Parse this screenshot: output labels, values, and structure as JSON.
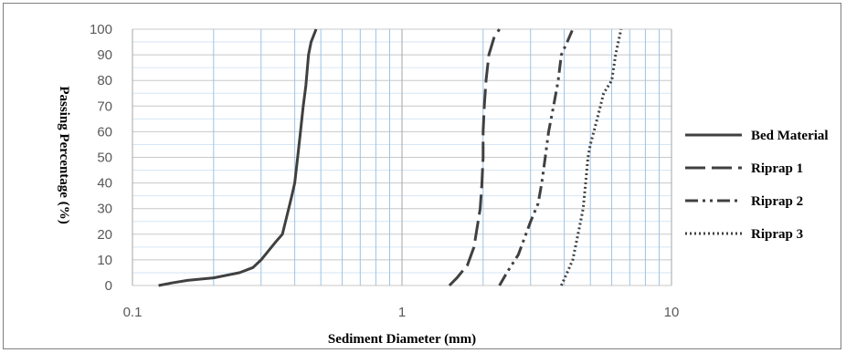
{
  "chart_data": {
    "type": "line",
    "xlabel": "Sediment Diameter (mm)",
    "ylabel": "Passing Percentage (%)",
    "xscale": "log",
    "xlim": [
      0.1,
      10
    ],
    "ylim": [
      0,
      100
    ],
    "x_ticks": [
      "0.1",
      "1",
      "10"
    ],
    "y_ticks": [
      "0",
      "10",
      "20",
      "30",
      "40",
      "50",
      "60",
      "70",
      "80",
      "90",
      "100"
    ],
    "grid": true,
    "legend_position": "right",
    "series": [
      {
        "name": "Bed Material",
        "dash": "solid",
        "color": "#404040",
        "points": [
          [
            0.125,
            0
          ],
          [
            0.14,
            1
          ],
          [
            0.16,
            2
          ],
          [
            0.2,
            3
          ],
          [
            0.25,
            5
          ],
          [
            0.28,
            7
          ],
          [
            0.3,
            10
          ],
          [
            0.34,
            17
          ],
          [
            0.36,
            20
          ],
          [
            0.38,
            30
          ],
          [
            0.39,
            35
          ],
          [
            0.4,
            40
          ],
          [
            0.41,
            50
          ],
          [
            0.42,
            60
          ],
          [
            0.43,
            70
          ],
          [
            0.44,
            78
          ],
          [
            0.45,
            90
          ],
          [
            0.46,
            95
          ],
          [
            0.48,
            100
          ]
        ]
      },
      {
        "name": "Riprap 1",
        "dash": "long-dash",
        "color": "#404040",
        "points": [
          [
            1.5,
            0
          ],
          [
            1.6,
            3
          ],
          [
            1.75,
            8
          ],
          [
            1.85,
            15
          ],
          [
            1.95,
            30
          ],
          [
            1.98,
            40
          ],
          [
            2.0,
            50
          ],
          [
            2.0,
            60
          ],
          [
            2.02,
            70
          ],
          [
            2.05,
            80
          ],
          [
            2.1,
            90
          ],
          [
            2.2,
            97
          ],
          [
            2.3,
            100
          ]
        ]
      },
      {
        "name": "Riprap 2",
        "dash": "dash-dot-dot",
        "color": "#404040",
        "points": [
          [
            2.3,
            0
          ],
          [
            2.45,
            5
          ],
          [
            2.7,
            12
          ],
          [
            3.0,
            25
          ],
          [
            3.2,
            32
          ],
          [
            3.3,
            40
          ],
          [
            3.4,
            50
          ],
          [
            3.5,
            60
          ],
          [
            3.65,
            70
          ],
          [
            3.8,
            80
          ],
          [
            3.9,
            90
          ],
          [
            4.1,
            95
          ],
          [
            4.3,
            100
          ]
        ]
      },
      {
        "name": "Riprap 3",
        "dash": "dotted",
        "color": "#404040",
        "points": [
          [
            3.9,
            0
          ],
          [
            4.1,
            5
          ],
          [
            4.3,
            10
          ],
          [
            4.5,
            20
          ],
          [
            4.7,
            30
          ],
          [
            4.8,
            40
          ],
          [
            4.9,
            50
          ],
          [
            5.0,
            55
          ],
          [
            5.3,
            65
          ],
          [
            5.6,
            75
          ],
          [
            6.0,
            80
          ],
          [
            6.2,
            90
          ],
          [
            6.5,
            100
          ]
        ]
      }
    ]
  }
}
